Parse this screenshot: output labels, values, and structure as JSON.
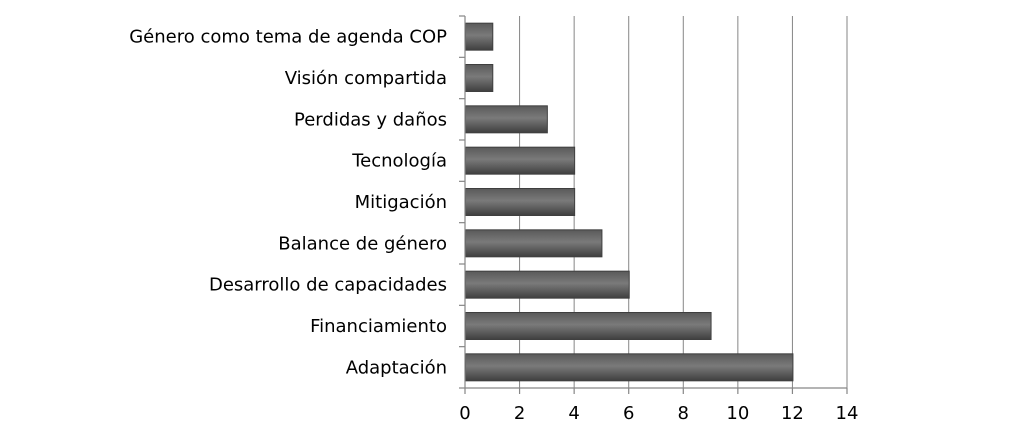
{
  "chart_data": {
    "type": "bar",
    "orientation": "horizontal",
    "title": "",
    "xlabel": "",
    "ylabel": "",
    "categories": [
      "Género como tema de agenda COP",
      "Visión compartida",
      "Perdidas y daños",
      "Tecnología",
      "Mitigación",
      "Balance de género",
      "Desarrollo de capacidades",
      "Financiamiento",
      "Adaptación"
    ],
    "values": [
      1,
      1,
      3,
      4,
      4,
      5,
      6,
      9,
      12
    ],
    "xlim": [
      0,
      14
    ],
    "xticks": [
      "0",
      "2",
      "4",
      "6",
      "8",
      "10",
      "12",
      "14"
    ],
    "grid": true,
    "legend": "none",
    "colors": {
      "bar_dark": "#3f3f3f",
      "bar_mid": "#7a7a7a",
      "bar_light": "#5a5a5a",
      "grid": "#868686"
    }
  }
}
